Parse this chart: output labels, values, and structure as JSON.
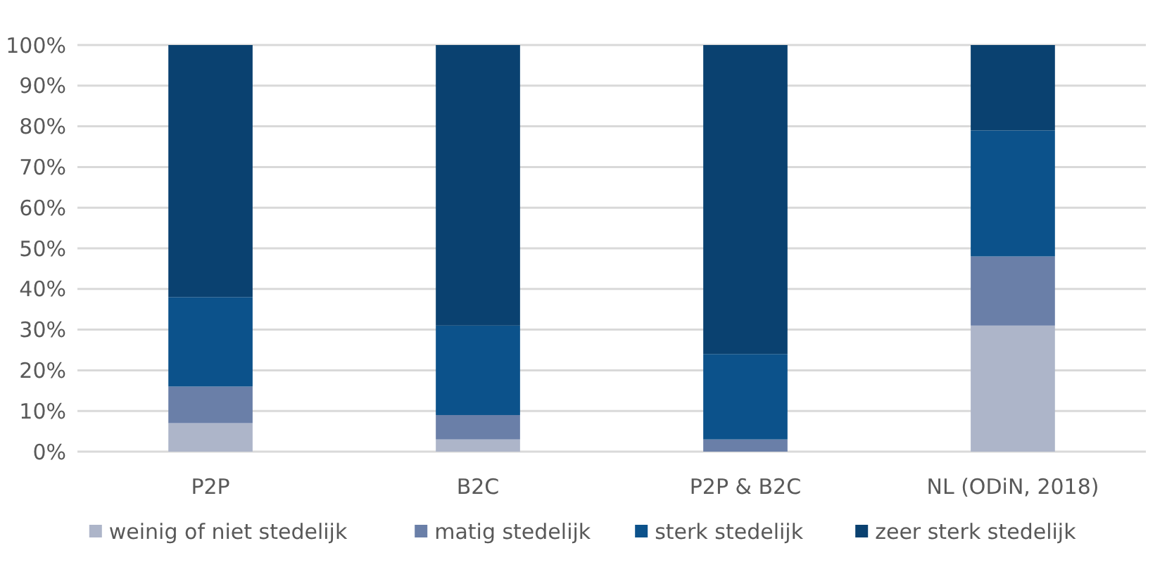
{
  "chart_data": {
    "type": "bar",
    "stacked": true,
    "categories": [
      "P2P",
      "B2C",
      "P2P & B2C",
      "NL (ODiN, 2018)"
    ],
    "series": [
      {
        "name": "weinig of niet stedelijk",
        "color": "#adb5c9",
        "values": [
          7,
          3,
          0,
          31
        ]
      },
      {
        "name": "matig stedelijk",
        "color": "#6a7fa8",
        "values": [
          9,
          6,
          3,
          17
        ]
      },
      {
        "name": "sterk stedelijk",
        "color": "#0c528b",
        "values": [
          22,
          22,
          21,
          31
        ]
      },
      {
        "name": "zeer sterk stedelijk",
        "color": "#0a4170",
        "values": [
          62,
          69,
          76,
          21
        ]
      }
    ],
    "ylim": [
      0,
      100
    ],
    "yticks": [
      {
        "value": 0,
        "label": "0%"
      },
      {
        "value": 10,
        "label": "10%"
      },
      {
        "value": 20,
        "label": "20%"
      },
      {
        "value": 30,
        "label": "30%"
      },
      {
        "value": 40,
        "label": "40%"
      },
      {
        "value": 50,
        "label": "50%"
      },
      {
        "value": 60,
        "label": "60%"
      },
      {
        "value": 70,
        "label": "70%"
      },
      {
        "value": 80,
        "label": "80%"
      },
      {
        "value": 90,
        "label": "90%"
      },
      {
        "value": 100,
        "label": "100%"
      }
    ],
    "grid": "y",
    "legend": "bottom"
  }
}
